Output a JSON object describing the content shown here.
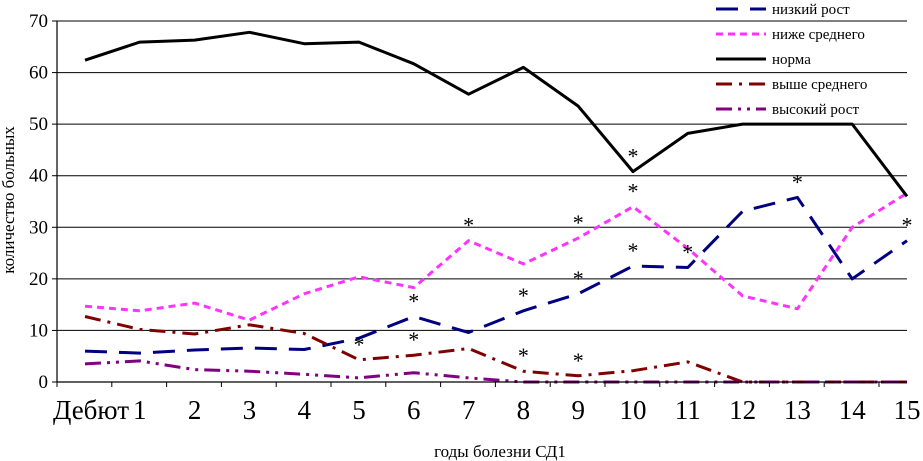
{
  "chart_data": {
    "type": "line",
    "title": "",
    "xlabel": "годы болезни СД1",
    "ylabel": "количество больных",
    "ylim": [
      0,
      70
    ],
    "yticks": [
      "0",
      "10",
      "20",
      "30",
      "40",
      "50",
      "60",
      "70"
    ],
    "grid": "horizontal",
    "legend_position": "top-right",
    "categories": [
      "Дебют",
      "1",
      "2",
      "3",
      "4",
      "5",
      "6",
      "7",
      "8",
      "9",
      "10",
      "11",
      "12",
      "13",
      "14",
      "15"
    ],
    "series": [
      {
        "name": "низкий рост",
        "color": "#000080",
        "dash": "long-dash",
        "values": [
          6,
          5.6,
          6.2,
          6.6,
          6.3,
          8.5,
          12.7,
          9.6,
          13.8,
          17.1,
          22.5,
          22.2,
          33.1,
          35.8,
          20,
          27.4
        ],
        "asterisks": [
          6,
          8,
          9,
          10,
          11,
          13,
          15
        ]
      },
      {
        "name": "ниже среднего",
        "color": "#ff33ff",
        "dash": "short-dash",
        "values": [
          14.7,
          13.8,
          15.3,
          12,
          17.1,
          20.4,
          18.3,
          27.4,
          22.9,
          27.9,
          34,
          25.9,
          16.7,
          14.2,
          30,
          36.6
        ],
        "asterisks": [
          7,
          9,
          10
        ]
      },
      {
        "name": "норма",
        "color": "#000000",
        "dash": "solid",
        "values": [
          62.4,
          65.9,
          66.3,
          67.8,
          65.6,
          65.9,
          61.7,
          55.8,
          61,
          53.5,
          40.8,
          48.2,
          50,
          50,
          50,
          36
        ],
        "asterisks": [
          10
        ]
      },
      {
        "name": "выше среднего",
        "color": "#800000",
        "dash": "dash-dot",
        "values": [
          12.7,
          10.2,
          9.3,
          11.1,
          9.4,
          4.3,
          5.2,
          6.5,
          2.1,
          1.2,
          2.2,
          3.9,
          0,
          0,
          0,
          0
        ],
        "asterisks": [
          5,
          6,
          8,
          9
        ]
      },
      {
        "name": "высокий рост",
        "color": "#800080",
        "dash": "dash-dot-dot",
        "values": [
          3.5,
          4.1,
          2.4,
          2.1,
          1.5,
          0.8,
          1.8,
          0.8,
          0,
          0,
          0,
          0,
          0,
          0,
          0,
          0
        ],
        "asterisks": []
      }
    ],
    "annotation_symbol": "*"
  }
}
